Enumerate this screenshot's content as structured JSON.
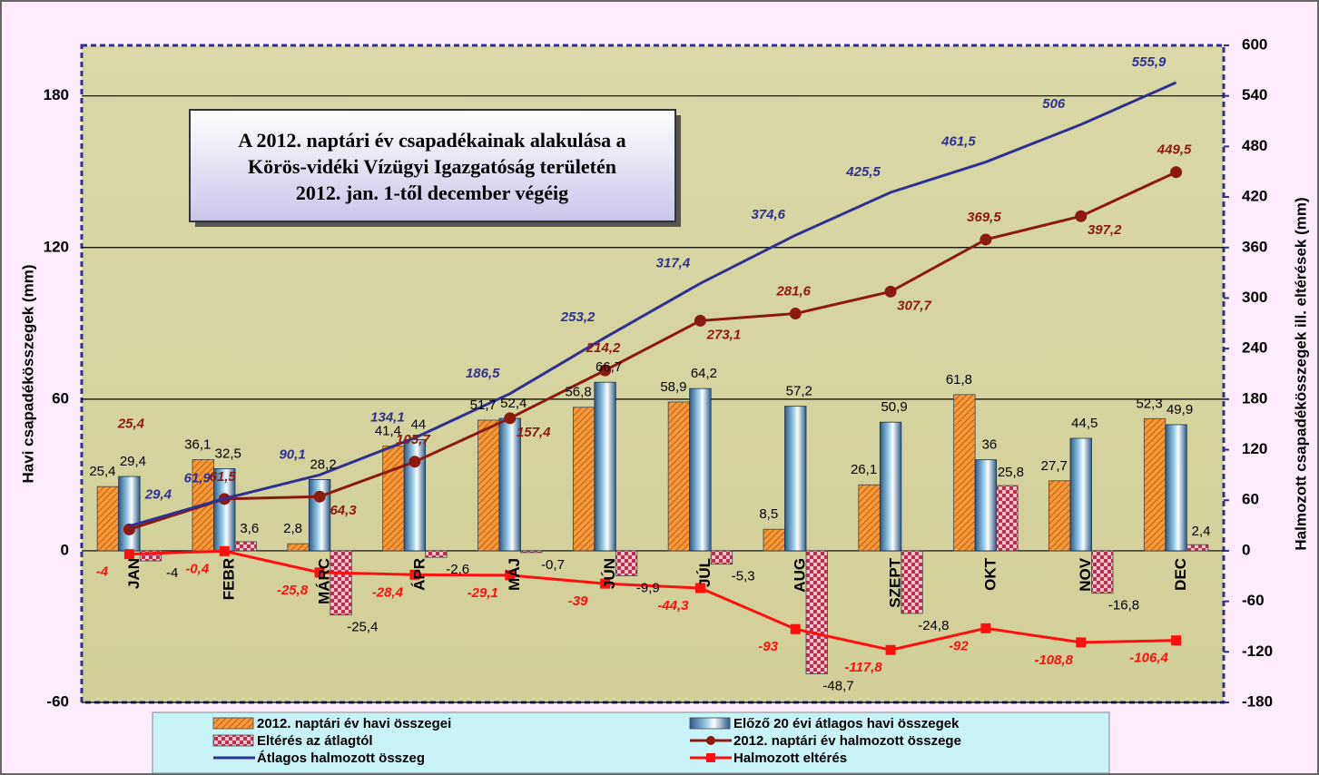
{
  "chart_data": {
    "type": "bar",
    "title": [
      "A 2012. naptári év csapadékainak alakulása a",
      "Körös-vidéki Vízügyi Igazgatóság területén",
      "2012. jan. 1-től december végéig"
    ],
    "y_label": "Havi csapadékösszegek (mm)",
    "y2_label": "Halmozott csapadékösszegek ill. eltérések (mm)",
    "categories": [
      "JAN",
      "FEBR",
      "MÁRC",
      "ÁPR",
      "MÁJ",
      "JÚN",
      "JÚL",
      "AUG",
      "SZEPT",
      "OKT",
      "NOV",
      "DEC"
    ],
    "ylim": [
      -60,
      200
    ],
    "yticks": [
      -60,
      0,
      60,
      120,
      180
    ],
    "y2lim": [
      -180,
      600
    ],
    "y2ticks": [
      -180,
      -120,
      -60,
      0,
      60,
      120,
      180,
      240,
      300,
      360,
      420,
      480,
      540,
      600
    ],
    "grid": true,
    "series": [
      {
        "name": "2012. naptári év havi összegei",
        "type": "bar",
        "color": "#f59a3a",
        "values": [
          25.4,
          36.1,
          2.8,
          41.4,
          51.7,
          56.8,
          58.9,
          8.5,
          26.1,
          61.8,
          27.7,
          52.3
        ],
        "value_labels": [
          "25,4",
          "36,1",
          "2,8",
          "41,4",
          "51,7",
          "56,8",
          "58,9",
          "8,5",
          "26,1",
          "61,8",
          "27,7",
          "52,3"
        ]
      },
      {
        "name": "Előző 20 évi átlagos havi összegek",
        "type": "bar",
        "color": "#a8d8f0",
        "values": [
          29.4,
          32.5,
          28.2,
          44,
          52.4,
          66.7,
          64.2,
          57.2,
          50.9,
          36,
          44.5,
          49.9
        ],
        "value_labels": [
          "29,4",
          "32,5",
          "28,2",
          "44",
          "52,4",
          "66,7",
          "64,2",
          "57,2",
          "50,9",
          "36",
          "44,5",
          "49,9"
        ]
      },
      {
        "name": "Eltérés az átlagtól",
        "type": "bar",
        "color": "#b8304a",
        "values": [
          -4,
          3.6,
          -25.4,
          -2.6,
          -0.7,
          -9.9,
          -5.3,
          -48.7,
          -24.8,
          25.8,
          -16.8,
          2.4
        ],
        "value_labels": [
          "-4",
          "3,6",
          "-25,4",
          "-2,6",
          "-0,7",
          "-9,9",
          "-5,3",
          "-48,7",
          "-24,8",
          "25,8",
          "-16,8",
          "2,4"
        ]
      },
      {
        "name": "2012. naptári év halmozott összege",
        "type": "line",
        "axis": "y2",
        "marker": "circle",
        "color": "#8b1a10",
        "values": [
          25.4,
          61.5,
          64.3,
          105.7,
          157.4,
          214.2,
          273.1,
          281.6,
          307.7,
          369.5,
          397.2,
          449.5
        ],
        "value_labels": [
          "25,4",
          "61,5",
          "64,3",
          "105,7",
          "157,4",
          "214,2",
          "273,1",
          "281,6",
          "307,7",
          "369,5",
          "397,2",
          "449,5"
        ]
      },
      {
        "name": "Átlagos halmozott összeg",
        "type": "line",
        "axis": "y2",
        "color": "#2e3192",
        "values": [
          29.4,
          61.9,
          90.1,
          134.1,
          186.5,
          253.2,
          317.4,
          374.6,
          425.5,
          461.5,
          506,
          555.9
        ],
        "value_labels": [
          "29,4",
          "61,9",
          "90,1",
          "134,1",
          "186,5",
          "253,2",
          "317,4",
          "374,6",
          "425,5",
          "461,5",
          "506",
          "555,9"
        ]
      },
      {
        "name": "Halmozott eltérés",
        "type": "line",
        "axis": "y2",
        "marker": "square",
        "color": "#ff1010",
        "values": [
          -4,
          -0.4,
          -25.8,
          -28.4,
          -29.1,
          -39,
          -44.3,
          -93,
          -117.8,
          -92,
          -108.8,
          -106.4
        ],
        "value_labels": [
          "-4",
          "-0,4",
          "-25,8",
          "-28,4",
          "-29,1",
          "-39",
          "-44,3",
          "-93",
          "-117,8",
          "-92",
          "-108,8",
          "-106,4"
        ]
      }
    ]
  }
}
